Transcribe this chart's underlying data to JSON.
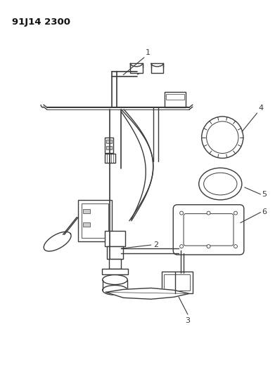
{
  "title_code": "91J14 2300",
  "background_color": "#ffffff",
  "line_color": "#3a3a3a",
  "figsize": [
    3.91,
    5.33
  ],
  "dpi": 100
}
